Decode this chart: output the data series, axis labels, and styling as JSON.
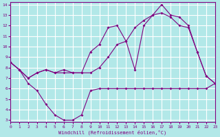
{
  "xlabel": "Windchill (Refroidissement éolien,°C)",
  "xlim": [
    0,
    23
  ],
  "ylim": [
    2.8,
    14.2
  ],
  "yticks": [
    3,
    4,
    5,
    6,
    7,
    8,
    9,
    10,
    11,
    12,
    13,
    14
  ],
  "xticks": [
    0,
    1,
    2,
    3,
    4,
    5,
    6,
    7,
    8,
    9,
    10,
    11,
    12,
    13,
    14,
    15,
    16,
    17,
    18,
    19,
    20,
    21,
    22,
    23
  ],
  "bg_color": "#b2e8e8",
  "line_color": "#800080",
  "grid_color": "#ffffff",
  "line1_x": [
    0,
    1,
    2,
    3,
    4,
    5,
    6,
    7,
    8,
    9,
    10,
    11,
    12,
    13,
    14,
    15,
    16,
    17,
    18,
    19,
    20,
    21,
    22,
    23
  ],
  "line1_y": [
    8.5,
    7.8,
    6.5,
    5.8,
    4.5,
    3.5,
    3.0,
    3.0,
    3.5,
    5.8,
    6.0,
    6.0,
    6.0,
    6.0,
    6.0,
    6.0,
    6.0,
    6.0,
    6.0,
    6.0,
    6.0,
    6.0,
    6.0,
    6.5
  ],
  "line2_x": [
    0,
    1,
    2,
    3,
    4,
    5,
    6,
    7,
    8,
    9,
    10,
    11,
    12,
    13,
    14,
    15,
    16,
    17,
    18,
    19,
    20,
    21,
    22,
    23
  ],
  "line2_y": [
    8.5,
    7.8,
    7.0,
    7.5,
    7.8,
    7.5,
    7.5,
    7.5,
    7.5,
    7.5,
    8.0,
    9.0,
    10.2,
    10.5,
    11.8,
    12.5,
    13.0,
    13.2,
    12.8,
    12.0,
    11.8,
    9.5,
    7.2,
    6.5
  ],
  "line3_x": [
    0,
    1,
    2,
    3,
    4,
    5,
    6,
    7,
    8,
    9,
    10,
    11,
    12,
    13,
    14,
    15,
    16,
    17,
    18,
    19,
    20,
    21,
    22,
    23
  ],
  "line3_y": [
    8.5,
    7.8,
    7.0,
    7.5,
    7.8,
    7.5,
    7.8,
    7.5,
    7.5,
    9.5,
    10.2,
    11.8,
    12.0,
    10.5,
    7.8,
    12.0,
    13.0,
    14.0,
    13.0,
    12.8,
    12.0,
    9.5,
    7.2,
    6.5
  ]
}
